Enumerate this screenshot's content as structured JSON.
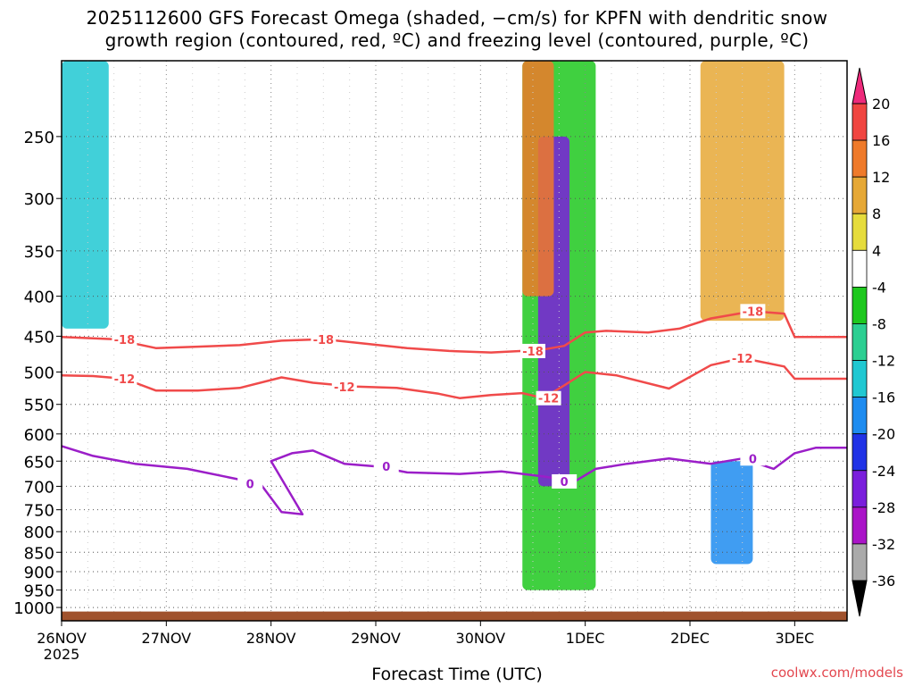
{
  "header": {
    "title_line1": "2025112600 GFS Forecast Omega (shaded, −cm/s) for KPFN with dendritic snow",
    "title_line2": "growth region (contoured, red, ºC) and freezing level (contoured, purple, ºC)"
  },
  "footer": {
    "xlabel": "Forecast Time (UTC)",
    "credit": "coolwx.com/models"
  },
  "chart_data": {
    "type": "heatmap",
    "title": "2025112600 GFS Forecast Omega (shaded, −cm/s) for KPFN with dendritic snow growth region (contoured, red, ºC) and freezing level (contoured, purple, ºC)",
    "xlabel": "Forecast Time (UTC)",
    "ylabel": "",
    "x_range_days": [
      0,
      7.5
    ],
    "x_ticks": [
      {
        "day": 0,
        "label": "26NOV",
        "sublabel": "2025"
      },
      {
        "day": 1,
        "label": "27NOV"
      },
      {
        "day": 2,
        "label": "28NOV"
      },
      {
        "day": 3,
        "label": "29NOV"
      },
      {
        "day": 4,
        "label": "30NOV"
      },
      {
        "day": 5,
        "label": "1DEC"
      },
      {
        "day": 6,
        "label": "2DEC"
      },
      {
        "day": 7,
        "label": "3DEC"
      }
    ],
    "y_axis": {
      "scale": "log-pressure",
      "unit": "hPa",
      "range": [
        200,
        1040
      ],
      "ticks": [
        250,
        300,
        350,
        400,
        450,
        500,
        550,
        600,
        650,
        700,
        750,
        800,
        850,
        900,
        950,
        1000
      ]
    },
    "colorbar": {
      "labels": [
        20,
        16,
        12,
        8,
        4,
        -4,
        -8,
        -12,
        -16,
        -20,
        -24,
        -28,
        -32,
        -36
      ],
      "bins": [
        {
          "from": 20,
          "to": 22,
          "color": "#ee2a7b",
          "cap": "up"
        },
        {
          "from": 16,
          "to": 20,
          "color": "#f04540"
        },
        {
          "from": 12,
          "to": 16,
          "color": "#ef7a2a"
        },
        {
          "from": 8,
          "to": 12,
          "color": "#e6a836"
        },
        {
          "from": 4,
          "to": 8,
          "color": "#e6dc3c"
        },
        {
          "from": -4,
          "to": 4,
          "color": "#ffffff"
        },
        {
          "from": -8,
          "to": -4,
          "color": "#1ec81e"
        },
        {
          "from": -12,
          "to": -8,
          "color": "#2ccf92"
        },
        {
          "from": -16,
          "to": -12,
          "color": "#20c8d2"
        },
        {
          "from": -20,
          "to": -16,
          "color": "#1e8cf0"
        },
        {
          "from": -24,
          "to": -20,
          "color": "#2032e6"
        },
        {
          "from": -28,
          "to": -24,
          "color": "#7a1edc"
        },
        {
          "from": -32,
          "to": -28,
          "color": "#aa14c8"
        },
        {
          "from": -36,
          "to": -32,
          "color": "#aaaaaa"
        },
        {
          "from": -40,
          "to": -36,
          "color": "#000000",
          "cap": "down"
        }
      ]
    },
    "contours": [
      {
        "name": "dendritic growth -18",
        "label": "-18",
        "color": "#f04a4a",
        "points": [
          [
            0,
            451
          ],
          [
            0.5,
            454
          ],
          [
            0.9,
            466
          ],
          [
            1.3,
            464
          ],
          [
            1.7,
            462
          ],
          [
            2.1,
            456
          ],
          [
            2.5,
            454
          ],
          [
            2.9,
            460
          ],
          [
            3.3,
            466
          ],
          [
            3.7,
            470
          ],
          [
            4.1,
            472
          ],
          [
            4.4,
            470
          ],
          [
            4.6,
            468
          ],
          [
            4.8,
            463
          ],
          [
            5.0,
            445
          ],
          [
            5.2,
            443
          ],
          [
            5.6,
            445
          ],
          [
            5.9,
            440
          ],
          [
            6.2,
            427
          ],
          [
            6.6,
            418
          ],
          [
            6.9,
            421
          ],
          [
            7.0,
            451
          ],
          [
            7.5,
            451
          ]
        ],
        "label_days": [
          0.6,
          2.5,
          4.5,
          6.6
        ]
      },
      {
        "name": "dendritic growth -12",
        "label": "-12",
        "color": "#f04a4a",
        "points": [
          [
            0,
            505
          ],
          [
            0.3,
            506
          ],
          [
            0.6,
            510
          ],
          [
            0.9,
            528
          ],
          [
            1.3,
            528
          ],
          [
            1.7,
            524
          ],
          [
            2.1,
            508
          ],
          [
            2.4,
            516
          ],
          [
            2.8,
            522
          ],
          [
            3.2,
            524
          ],
          [
            3.6,
            533
          ],
          [
            3.8,
            540
          ],
          [
            4.1,
            535
          ],
          [
            4.4,
            532
          ],
          [
            4.6,
            540
          ],
          [
            4.8,
            520
          ],
          [
            5.0,
            500
          ],
          [
            5.3,
            505
          ],
          [
            5.8,
            525
          ],
          [
            6.2,
            490
          ],
          [
            6.5,
            480
          ],
          [
            6.9,
            492
          ],
          [
            7.0,
            510
          ],
          [
            7.5,
            510
          ]
        ],
        "label_days": [
          0.6,
          2.7,
          4.65,
          6.5
        ]
      },
      {
        "name": "freezing level 0",
        "label": "0",
        "color": "#9b1ec8",
        "points": [
          [
            0,
            622
          ],
          [
            0.3,
            640
          ],
          [
            0.7,
            655
          ],
          [
            1.2,
            665
          ],
          [
            1.6,
            682
          ],
          [
            1.9,
            695
          ],
          [
            2.1,
            755
          ],
          [
            2.3,
            760
          ],
          [
            2.0,
            650
          ],
          [
            2.2,
            635
          ],
          [
            2.4,
            630
          ],
          [
            2.7,
            655
          ],
          [
            3.0,
            660
          ],
          [
            3.3,
            672
          ],
          [
            3.8,
            675
          ],
          [
            4.2,
            670
          ],
          [
            4.6,
            680
          ],
          [
            4.9,
            690
          ],
          [
            5.1,
            665
          ],
          [
            5.4,
            655
          ],
          [
            5.8,
            645
          ],
          [
            6.2,
            655
          ],
          [
            6.5,
            645
          ],
          [
            6.8,
            665
          ],
          [
            7.0,
            635
          ],
          [
            7.2,
            625
          ],
          [
            7.5,
            625
          ]
        ],
        "label_days": [
          1.8,
          3.1,
          4.8,
          6.6
        ]
      }
    ],
    "shaded_regions": [
      {
        "name": "strong rising motion 30 NOV-1 DEC",
        "color": "#1ec81e",
        "day": [
          4.4,
          5.1
        ],
        "p": [
          200,
          950
        ]
      },
      {
        "name": "core upward motion late 30 NOV",
        "color": "#7a1edc",
        "day": [
          4.55,
          4.85
        ],
        "p": [
          250,
          700
        ]
      },
      {
        "name": "descent ahead of front 30 NOV",
        "color": "#ef7a2a",
        "day": [
          4.4,
          4.7
        ],
        "p": [
          200,
          400
        ]
      },
      {
        "name": "upward motion 2-3 DEC",
        "color": "#1e8cf0",
        "day": [
          6.2,
          6.6
        ],
        "p": [
          650,
          880
        ]
      },
      {
        "name": "descent 2 DEC upper levels",
        "color": "#e6a836",
        "day": [
          6.1,
          6.9
        ],
        "p": [
          200,
          430
        ]
      },
      {
        "name": "rising motion 26 NOV",
        "color": "#20c8d2",
        "day": [
          0.0,
          0.45
        ],
        "p": [
          200,
          440
        ]
      }
    ]
  }
}
